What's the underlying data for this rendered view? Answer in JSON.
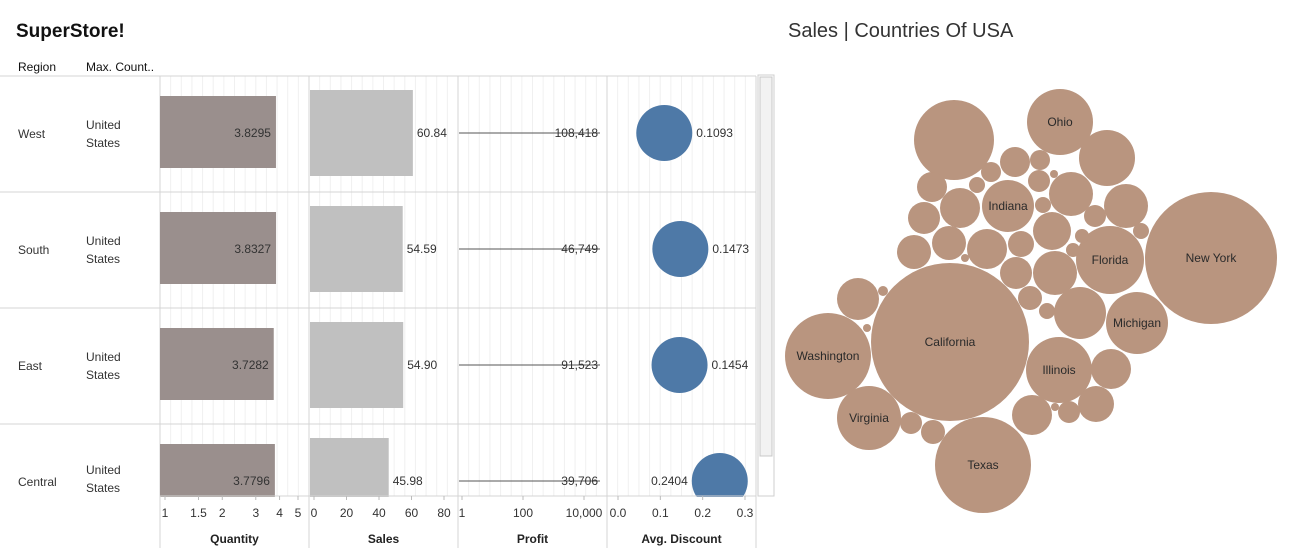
{
  "dashboard": {
    "title": "SuperStore!",
    "headers": {
      "region": "Region",
      "country": "Max. Count.."
    }
  },
  "chart_data": [
    {
      "type": "bar",
      "name": "region-table",
      "categories": [
        "West",
        "South",
        "East",
        "Central"
      ],
      "country": [
        "United\nStates",
        "United\nStates",
        "United\nStates",
        "United\nStates"
      ],
      "quantity": {
        "title": "Quantity",
        "scale": "log",
        "ticks": [
          "1",
          "1.5",
          "2",
          "3",
          "4",
          "5"
        ],
        "values": [
          3.8295,
          3.8327,
          3.7282,
          3.7796
        ],
        "labels": [
          "3.8295",
          "3.8327",
          "3.7282",
          "3.7796"
        ],
        "color": "#9a8f8d"
      },
      "sales": {
        "title": "Sales",
        "ticks": [
          "0",
          "20",
          "40",
          "60",
          "80"
        ],
        "values": [
          60.84,
          54.59,
          54.9,
          45.98
        ],
        "labels": [
          "60.84",
          "54.59",
          "54.90",
          "45.98"
        ],
        "color": "#c0c0c0"
      },
      "profit": {
        "title": "Profit",
        "scale": "log",
        "ticks": [
          "1",
          "100",
          "10,000"
        ],
        "values": [
          108418,
          46749,
          91523,
          39706
        ],
        "labels": [
          "108,418",
          "46,749",
          "91,523",
          "39,706"
        ],
        "color": "#555555"
      },
      "discount": {
        "title": "Avg. Discount",
        "ticks": [
          "0.0",
          "0.1",
          "0.2",
          "0.3"
        ],
        "values": [
          0.1093,
          0.1473,
          0.1454,
          0.2404
        ],
        "labels": [
          "0.1093",
          "0.1473",
          "0.1454",
          "0.2404"
        ],
        "color": "#4e79a7"
      }
    },
    {
      "type": "bubble",
      "name": "sales-countries-of-usa",
      "title": "Sales | Countries Of USA",
      "color": "#b9957f",
      "labeled": [
        "New York",
        "California",
        "Washington",
        "Texas",
        "Illinois",
        "Michigan",
        "Florida",
        "Ohio",
        "Virginia",
        "Indiana"
      ]
    }
  ]
}
